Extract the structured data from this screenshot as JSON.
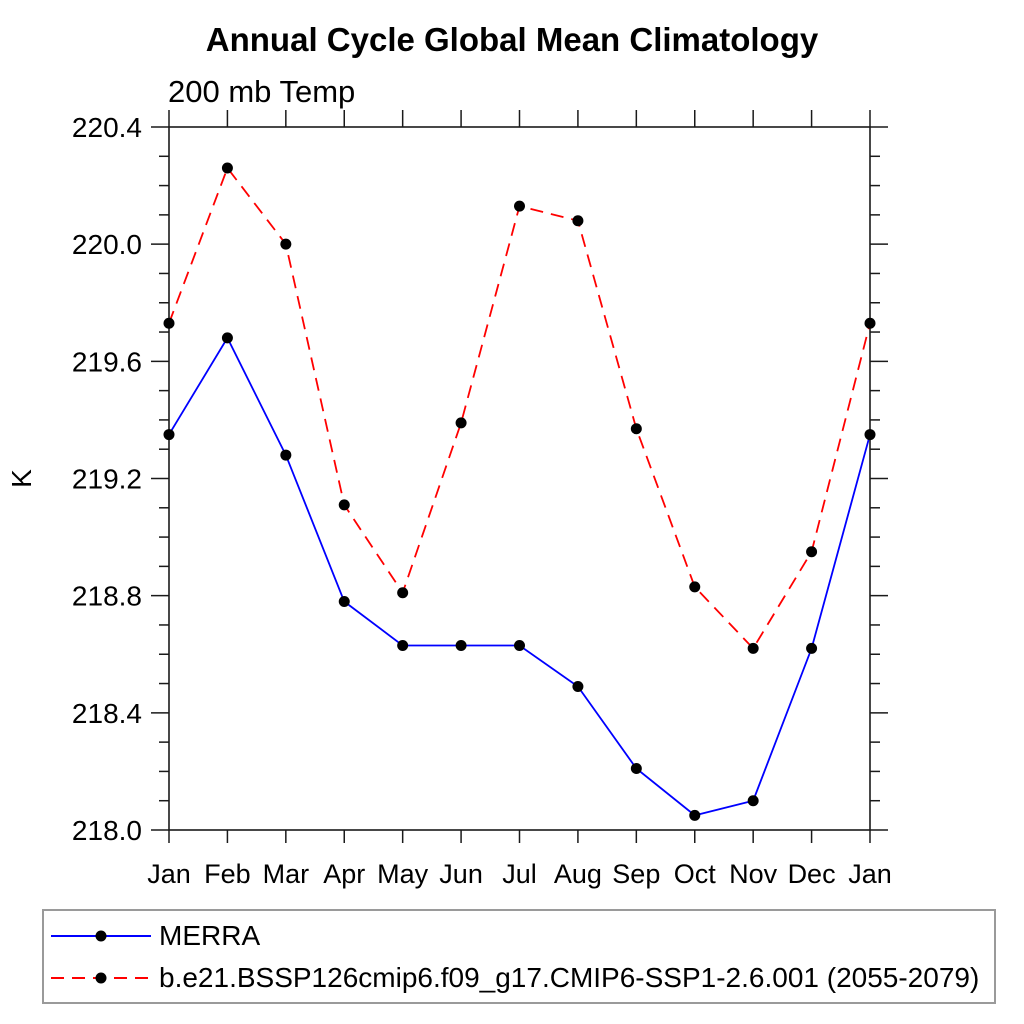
{
  "chart_data": {
    "type": "line",
    "title": "Annual Cycle Global Mean Climatology",
    "subtitle": "200 mb Temp",
    "ylabel": "K",
    "x_categories": [
      "Jan",
      "Feb",
      "Mar",
      "Apr",
      "May",
      "Jun",
      "Jul",
      "Aug",
      "Sep",
      "Oct",
      "Nov",
      "Dec",
      "Jan"
    ],
    "ylim": [
      218.0,
      220.4
    ],
    "ytick_labels": [
      "218.0",
      "218.4",
      "218.8",
      "219.2",
      "219.6",
      "220.0",
      "220.4"
    ],
    "ytick_major_step": 0.4,
    "ytick_minor_step": 0.1,
    "grid": false,
    "legend_position": "bottom-left-box",
    "series": [
      {
        "name": "MERRA",
        "color": "#0000ff",
        "line_style": "solid",
        "marker": "filled-circle",
        "marker_color": "#000000",
        "values": [
          219.35,
          219.68,
          219.28,
          218.78,
          218.63,
          218.63,
          218.63,
          218.49,
          218.21,
          218.05,
          218.1,
          218.62,
          219.35
        ]
      },
      {
        "name": "b.e21.BSSP126cmip6.f09_g17.CMIP6-SSP1-2.6.001 (2055-2079)",
        "color": "#ff0000",
        "line_style": "dashed",
        "marker": "filled-circle",
        "marker_color": "#000000",
        "values": [
          219.73,
          220.26,
          220.0,
          219.11,
          218.81,
          219.39,
          220.13,
          220.08,
          219.37,
          218.83,
          218.62,
          218.95,
          219.73
        ]
      }
    ]
  }
}
